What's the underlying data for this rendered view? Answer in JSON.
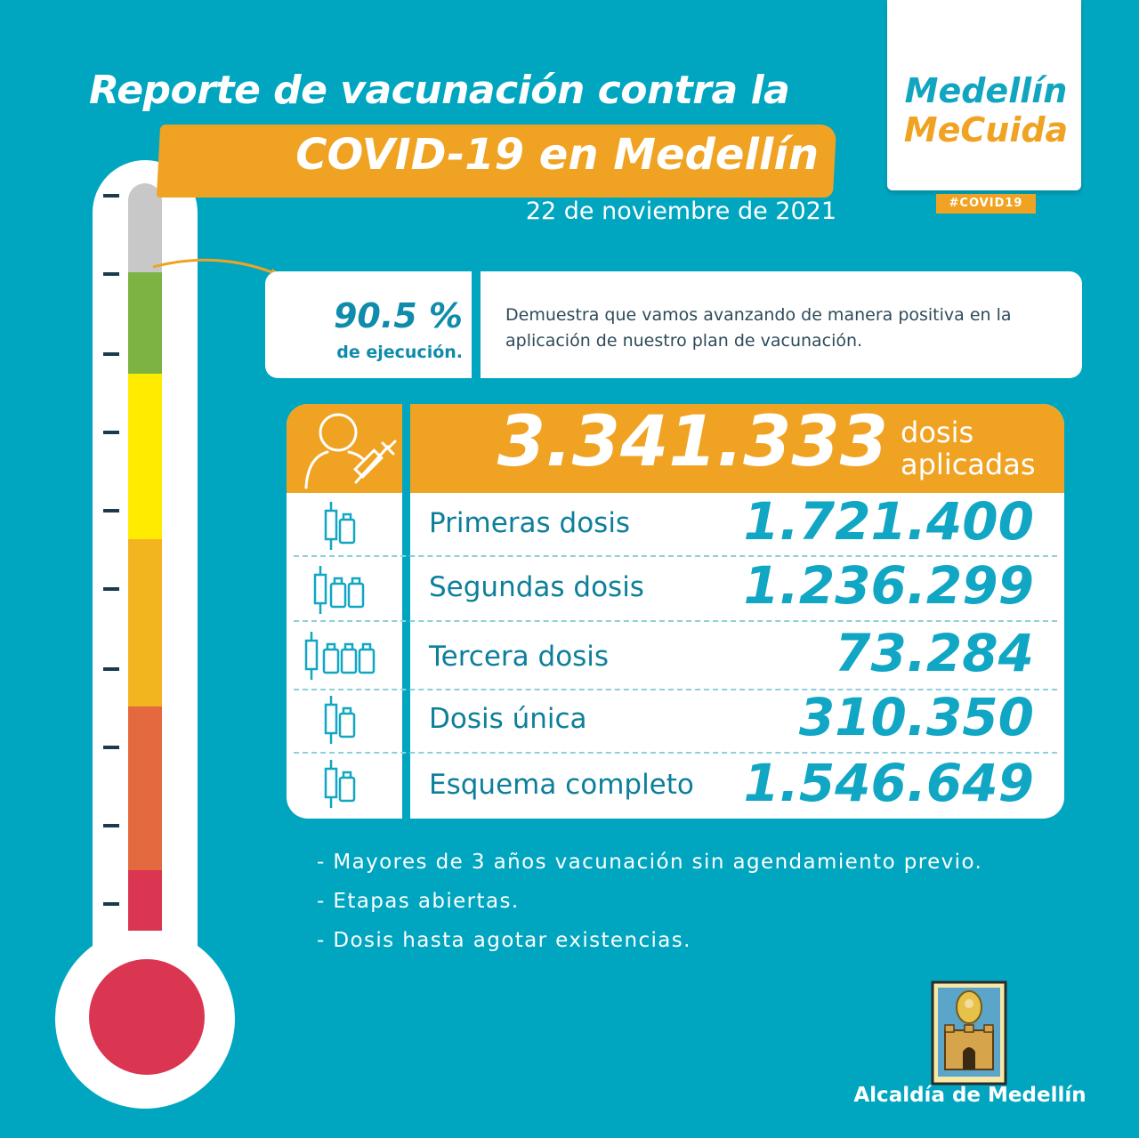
{
  "header": {
    "title_line1": "Reporte de vacunación contra la",
    "title_line2": "COVID-19 en Medellín",
    "date": "22 de noviembre de 2021"
  },
  "brand": {
    "line1": "Medellín",
    "line2": "MeCuida",
    "hashtag": "#COVID19"
  },
  "execution": {
    "percent": "90.5 %",
    "label": "de ejecución.",
    "description": "Demuestra que vamos avanzando de manera positiva en la aplicación de nuestro plan de vacunación.",
    "level": 0.905
  },
  "summary": {
    "total": "3.341.333",
    "total_label_line1": "dosis",
    "total_label_line2": "aplicadas"
  },
  "rows": [
    {
      "label": "Primeras dosis",
      "value": "1.721.400",
      "icon": "syringe-vial-icon"
    },
    {
      "label": "Segundas dosis",
      "value": "1.236.299",
      "icon": "syringe-two-vials-icon"
    },
    {
      "label": "Tercera dosis",
      "value": "73.284",
      "icon": "syringe-three-vials-icon"
    },
    {
      "label": "Dosis única",
      "value": "310.350",
      "icon": "syringe-vial-icon"
    },
    {
      "label": "Esquema completo",
      "value": "1.546.649",
      "icon": "syringe-vial-icon"
    }
  ],
  "notes": [
    "- Mayores de 3 años vacunación sin agendamiento previo.",
    "- Etapas abiertas.",
    "- Dosis hasta agotar existencias."
  ],
  "footer": {
    "org": "Alcaldía de Medellín"
  },
  "colors": {
    "background": "#00a6c0",
    "accent": "#f0a323",
    "primary_text": "#0d7f9b",
    "thermo_segments": [
      "#c8c8c8",
      "#7cb342",
      "#ffeb00",
      "#f2b51f",
      "#f2b51f",
      "#e5693f",
      "#da3651"
    ]
  }
}
